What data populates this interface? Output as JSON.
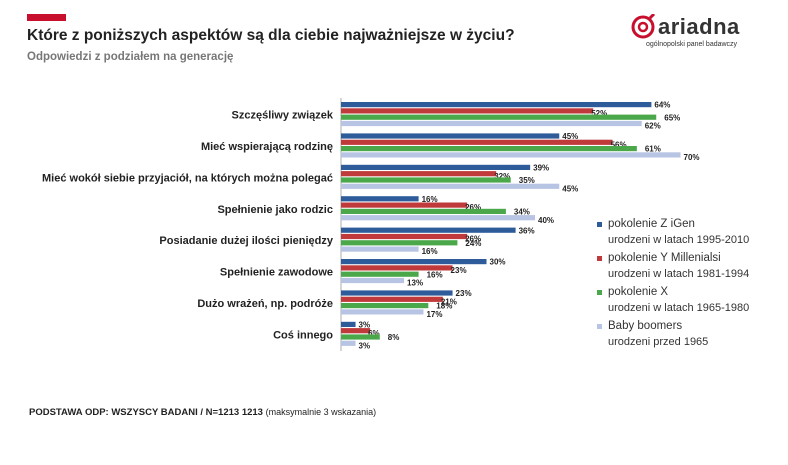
{
  "header": {
    "title": "Które z poniższych aspektów są dla ciebie najważniejsze w życiu?",
    "subtitle": "Odpowiedzi z podziałem na generację"
  },
  "logo": {
    "name": "ariadna",
    "tagline": "ogólnopolski panel badawczy"
  },
  "footer": {
    "base": "PODSTAWA ODP: WSZYSCY BADANI / N=1213 1213",
    "note": "(maksymalnie 3 wskazania)"
  },
  "colors": {
    "accent": "#c8102e",
    "gen_z": "#2e5b9a",
    "gen_y": "#c0393b",
    "gen_x": "#4aa84b",
    "boomers": "#b8c4e3"
  },
  "chart_data": {
    "type": "bar",
    "orientation": "horizontal",
    "categories": [
      "Szczęśliwy związek",
      "Mieć wspierającą rodzinę",
      "Mieć wokół siebie przyjaciół, na których można polegać",
      "Spełnienie jako rodzic",
      "Posiadanie dużej ilości pieniędzy",
      "Spełnienie zawodowe",
      "Dużo wrażeń, np. podróże",
      "Coś innego"
    ],
    "series": [
      {
        "name": "pokolenie Z iGen",
        "subtitle": "urodzeni w latach 1995-2010",
        "color": "#2e5b9a",
        "values": [
          64,
          45,
          39,
          16,
          36,
          30,
          23,
          3
        ]
      },
      {
        "name": "pokolenie Y Millenialsi",
        "subtitle": "urodzeni w latach 1981-1994",
        "color": "#c0393b",
        "values": [
          52,
          56,
          32,
          26,
          26,
          23,
          21,
          6
        ]
      },
      {
        "name": "pokolenie X",
        "subtitle": "urodzeni w latach 1965-1980",
        "color": "#4aa84b",
        "values": [
          65,
          61,
          35,
          34,
          24,
          16,
          18,
          8
        ]
      },
      {
        "name": "Baby boomers",
        "subtitle": "urodzeni przed 1965",
        "color": "#b8c4e3",
        "values": [
          62,
          70,
          45,
          40,
          16,
          13,
          17,
          3
        ]
      }
    ],
    "value_suffix": "%",
    "legend_position": "right",
    "grid": false
  }
}
